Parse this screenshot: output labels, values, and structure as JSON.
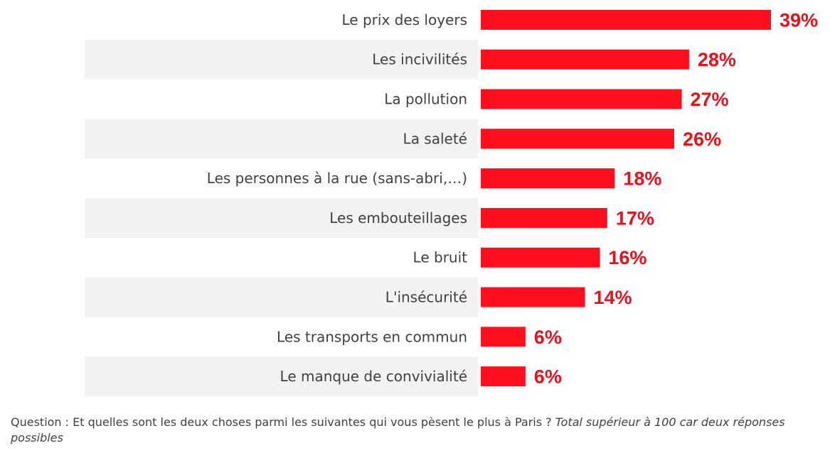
{
  "chart_data": {
    "type": "bar",
    "orientation": "horizontal",
    "categories": [
      "Le prix des loyers",
      "Les incivilités",
      "La pollution",
      "La saleté",
      "Les personnes à la rue (sans-abri,…)",
      "Les embouteillages",
      "Le bruit",
      "L'insécurité",
      "Les transports en commun",
      "Le manque de convivialité"
    ],
    "values": [
      39,
      28,
      27,
      26,
      18,
      17,
      16,
      14,
      6,
      6
    ],
    "value_labels": [
      "39%",
      "28%",
      "27%",
      "26%",
      "18%",
      "17%",
      "16%",
      "14%",
      "6%",
      "6%"
    ],
    "unit": "%",
    "xlim": [
      0,
      39
    ],
    "grid": false,
    "legend": "none",
    "bar_color": "#ff0f1e",
    "value_label_color": "#e8111c",
    "alternate_row_color": "#f2f2f2"
  },
  "footnote": {
    "question": "Question : Et quelles sont les deux choses parmi les suivantes qui vous pèsent le plus à Paris ? ",
    "note": "Total supérieur à 100 car deux réponses possibles"
  }
}
